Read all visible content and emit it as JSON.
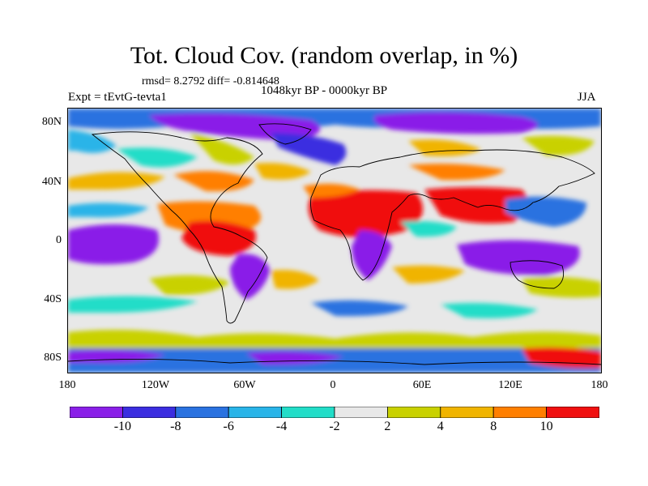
{
  "title": "Tot. Cloud Cov. (random overlap, in %)",
  "stats": "rmsd= 8.2792 diff= -0.814648",
  "experiment": "Expt = tEvtG-tevta1",
  "period": "1048kyr BP - 0000kyr BP",
  "season": "JJA",
  "lat_ticks": [
    "80N",
    "40N",
    "0",
    "40S",
    "80S"
  ],
  "lon_ticks": [
    "180",
    "120W",
    "60W",
    "0",
    "60E",
    "120E",
    "180"
  ],
  "colorbar": {
    "labels": [
      "-10",
      "-8",
      "-6",
      "-4",
      "-2",
      "2",
      "4",
      "8",
      "10"
    ],
    "colors": [
      "#8a1fe8",
      "#3b2ee0",
      "#2a72e0",
      "#29b4e8",
      "#22ddc8",
      "#e8e8e8",
      "#c9d100",
      "#f0b400",
      "#ff7f00",
      "#f01010"
    ]
  }
}
